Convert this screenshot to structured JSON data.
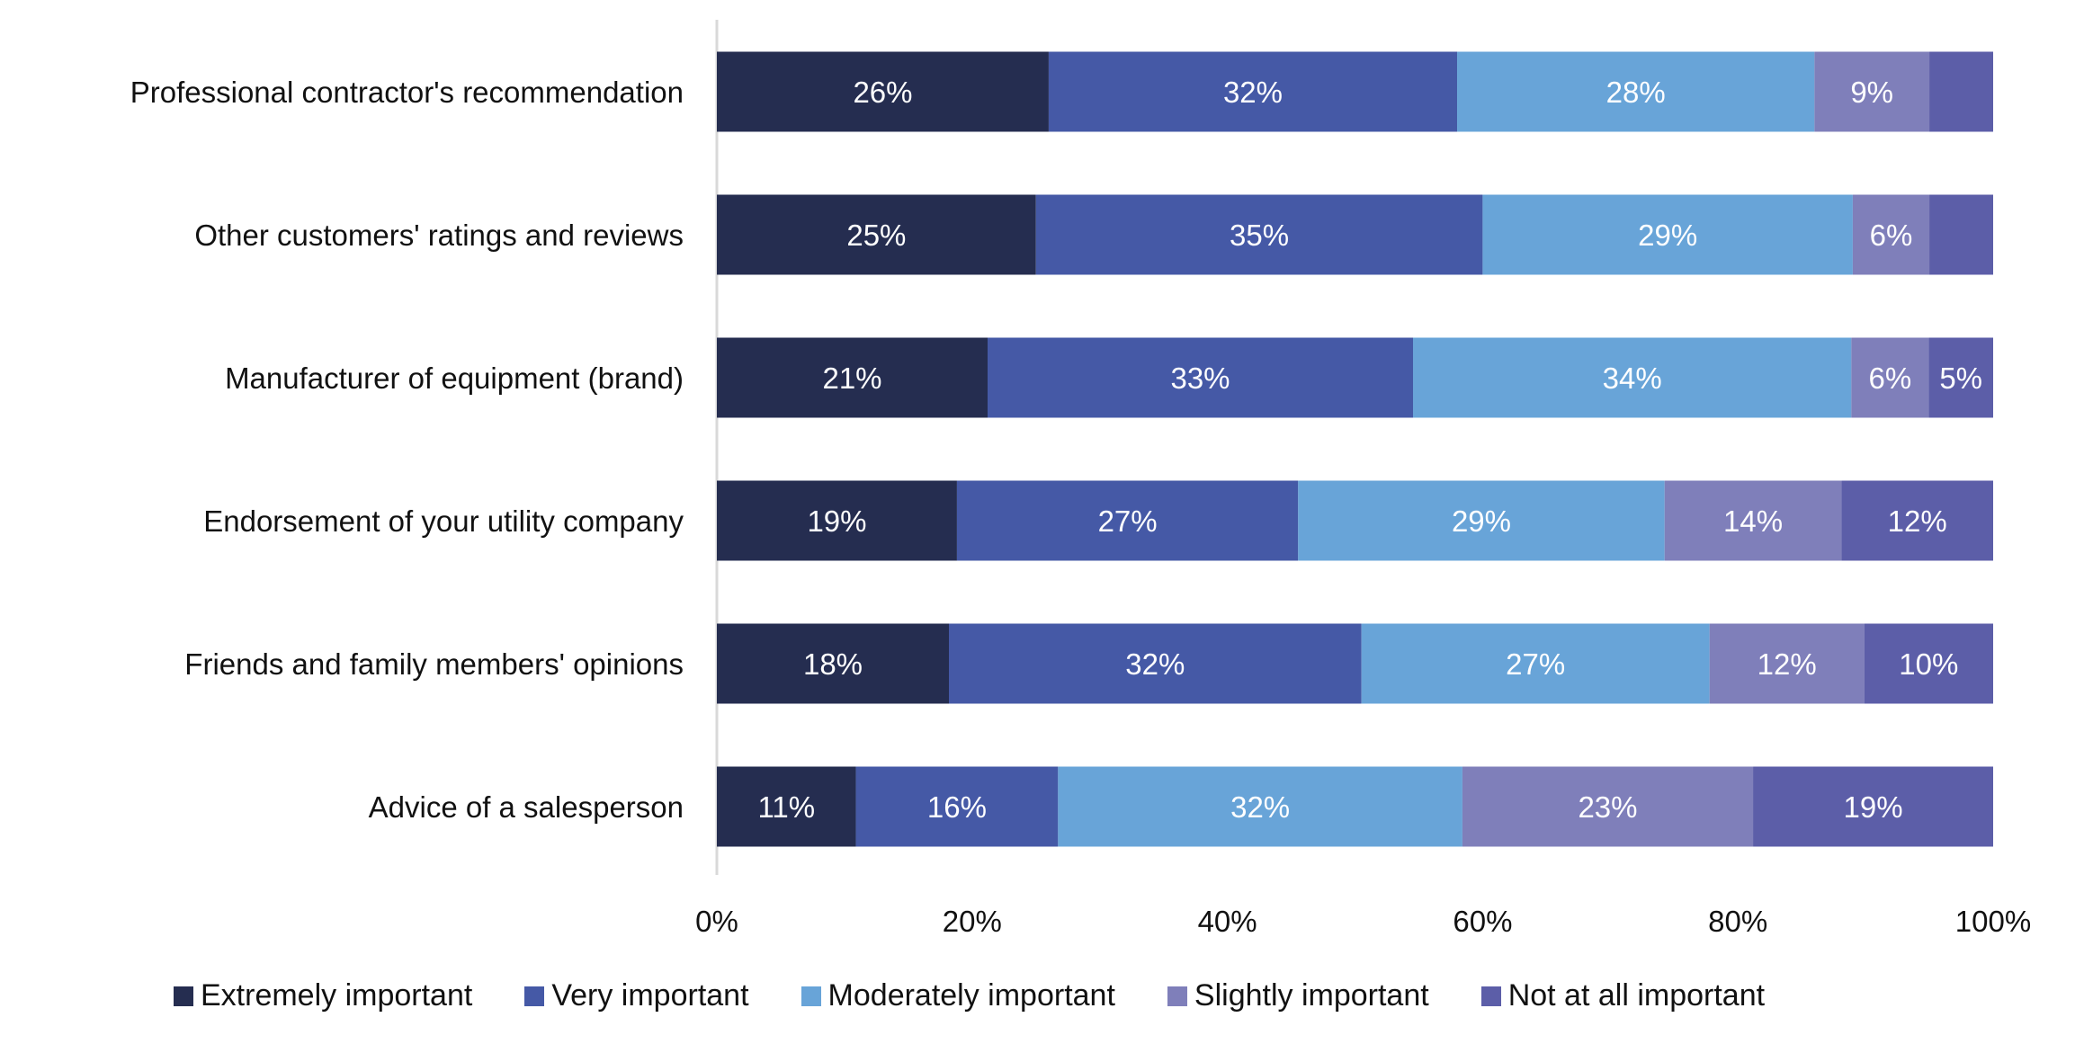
{
  "chart_data": {
    "type": "bar",
    "orientation": "horizontal",
    "stacked": true,
    "title": "",
    "xlabel": "",
    "ylabel": "",
    "xlim": [
      0,
      100
    ],
    "x_ticks": [
      "0%",
      "20%",
      "40%",
      "60%",
      "80%",
      "100%"
    ],
    "legend_position": "bottom",
    "grid": false,
    "categories": [
      "Professional contractor's recommendation",
      "Other customers' ratings and reviews",
      "Manufacturer of equipment (brand)",
      "Endorsement of your utility company",
      "Friends and family members' opinions",
      "Advice of a salesperson"
    ],
    "series": [
      {
        "name": "Extremely important",
        "color": "#252d50",
        "values": [
          26,
          25,
          21,
          19,
          18,
          11
        ],
        "labels": [
          "26%",
          "25%",
          "21%",
          "19%",
          "18%",
          "11%"
        ]
      },
      {
        "name": "Very important",
        "color": "#4559a6",
        "values": [
          32,
          35,
          33,
          27,
          32,
          16
        ],
        "labels": [
          "32%",
          "35%",
          "33%",
          "27%",
          "32%",
          "16%"
        ]
      },
      {
        "name": "Moderately important",
        "color": "#68a4d8",
        "values": [
          28,
          29,
          34,
          29,
          27,
          32
        ],
        "labels": [
          "28%",
          "29%",
          "34%",
          "29%",
          "27%",
          "32%"
        ]
      },
      {
        "name": "Slightly important",
        "color": "#7f7fba",
        "values": [
          9,
          6,
          6,
          14,
          12,
          23
        ],
        "labels": [
          "9%",
          "6%",
          "6%",
          "14%",
          "12%",
          "23%"
        ]
      },
      {
        "name": "Not at all important",
        "color": "#5c5ea8",
        "values": [
          5,
          5,
          5,
          12,
          10,
          19
        ],
        "labels": [
          null,
          null,
          "5%",
          "12%",
          "10%",
          "19%"
        ]
      }
    ]
  }
}
